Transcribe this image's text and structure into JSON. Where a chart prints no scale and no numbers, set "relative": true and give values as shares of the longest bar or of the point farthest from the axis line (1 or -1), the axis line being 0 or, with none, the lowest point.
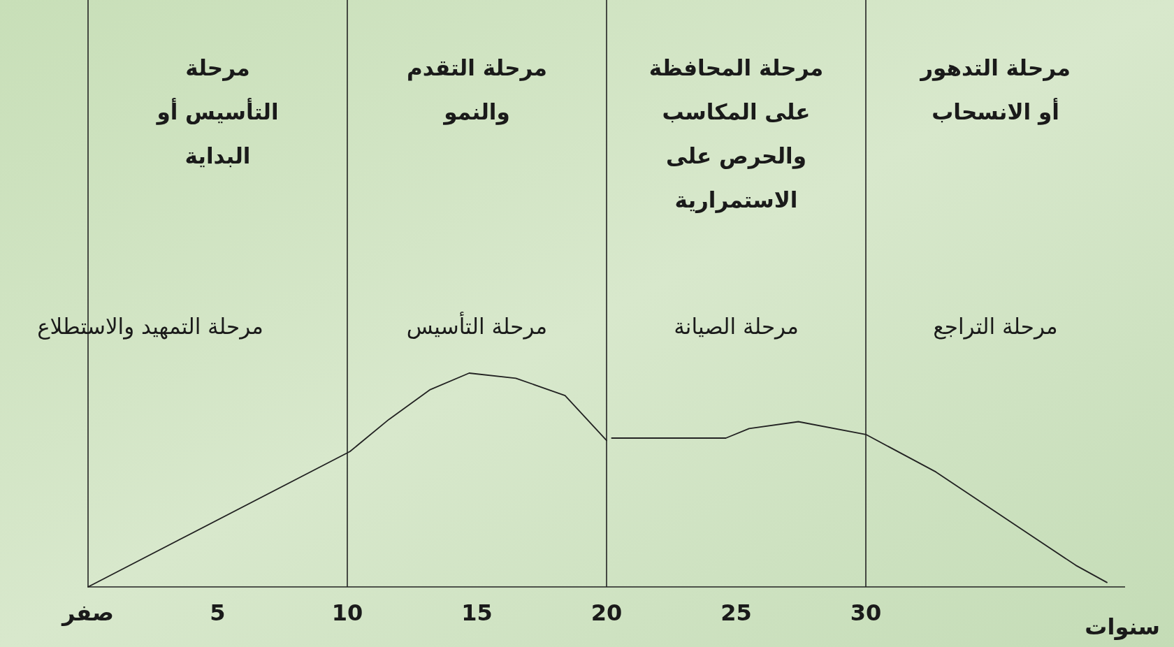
{
  "chart_data": {
    "type": "line",
    "relative": true,
    "x": [
      0,
      10.1,
      11.6,
      13.2,
      14.7,
      16.5,
      18.4,
      20,
      20.1,
      20.2,
      24.6,
      25.5,
      27.4,
      30,
      32.7,
      35.5,
      38.1,
      39.3
    ],
    "series": [
      {
        "color": "#222222",
        "values": [
          0,
          0.633,
          0.783,
          0.923,
          1.0,
          0.976,
          0.895,
          0.685,
          null,
          0.696,
          0.696,
          0.741,
          0.773,
          0.713,
          0.538,
          0.311,
          0.101,
          0.021
        ]
      }
    ],
    "xlim": [
      0,
      40
    ],
    "xticks": [
      {
        "value": 0,
        "label": "صفر"
      },
      5,
      10,
      15,
      20,
      25,
      30
    ],
    "xlabel": "سنوات",
    "ref_lines": [
      {
        "axis": "x",
        "value": 10
      },
      {
        "axis": "x",
        "value": 20
      },
      {
        "axis": "x",
        "value": 30
      }
    ],
    "annotations": [
      "مرحلة\nالتأسيس أو\nالبداية",
      "مرحلة التقدم\nوالنمو",
      "مرحلة المحافظة\nعلى المكاسب\nوالحرص على\nالاستمرارية",
      "مرحلة التدهور\nأو الانسحاب",
      "مرحلة التمهيد والاستطلاع",
      "مرحلة التأسيس",
      "مرحلة الصيانة",
      "مرحلة التراجع"
    ]
  }
}
